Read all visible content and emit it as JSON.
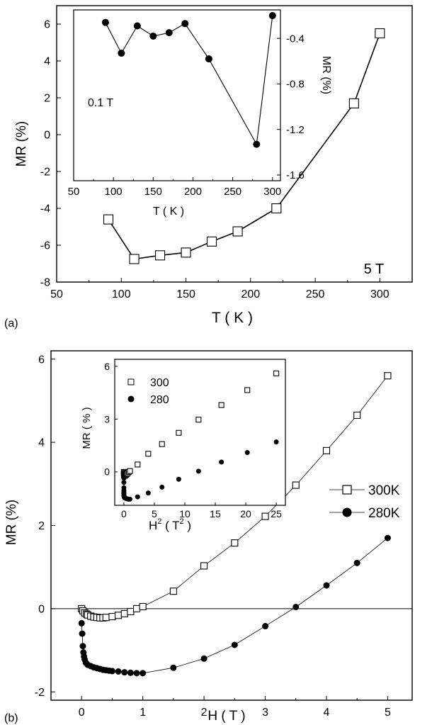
{
  "panels": [
    {
      "label": "(a)",
      "chart_data": {
        "type": "line",
        "xlabel": "T ( K )",
        "ylabel": "MR (%)",
        "xlim": [
          50,
          325
        ],
        "ylim": [
          -8,
          7
        ],
        "xticks": [
          50,
          100,
          150,
          200,
          250,
          300
        ],
        "yticks": [
          -8,
          -6,
          -4,
          -2,
          0,
          2,
          4,
          6
        ],
        "annotation": "5 T",
        "series": [
          {
            "marker": "open-square",
            "x": [
              90,
              110,
              130,
              150,
              170,
              190,
              220,
              280,
              300
            ],
            "y": [
              -4.6,
              -6.75,
              -6.55,
              -6.4,
              -5.8,
              -5.25,
              -4.0,
              1.7,
              5.5
            ]
          }
        ]
      },
      "inset": {
        "chart_data": {
          "type": "line",
          "xlabel": "T ( K )",
          "ylabel": "MR (%)",
          "xlim": [
            50,
            310
          ],
          "ylim": [
            -1.65,
            -0.15
          ],
          "xticks": [
            50,
            100,
            150,
            200,
            250,
            300
          ],
          "yticks": [
            -0.4,
            -0.8,
            -1.2,
            -1.6
          ],
          "annotation": "0.1 T",
          "series": [
            {
              "marker": "filled-circle",
              "x": [
                90,
                110,
                130,
                150,
                170,
                190,
                220,
                280,
                300
              ],
              "y": [
                -0.26,
                -0.53,
                -0.29,
                -0.38,
                -0.35,
                -0.27,
                -0.58,
                -1.33,
                -0.2
              ]
            }
          ]
        }
      }
    },
    {
      "label": "(b)",
      "chart_data": {
        "type": "line",
        "xlabel": "H ( T )",
        "ylabel": "MR (%)",
        "xlim": [
          -0.5,
          5.4
        ],
        "ylim": [
          -2.2,
          6.2
        ],
        "xticks": [
          0,
          1,
          2,
          3,
          4,
          5
        ],
        "yticks": [
          -2,
          0,
          2,
          4,
          6
        ],
        "legend": "center-right",
        "series": [
          {
            "name": "300K",
            "marker": "open-square",
            "x": [
              0,
              0.02,
              0.05,
              0.08,
              0.1,
              0.15,
              0.2,
              0.25,
              0.3,
              0.35,
              0.4,
              0.5,
              0.6,
              0.7,
              0.8,
              0.9,
              1.0,
              1.5,
              2.0,
              2.5,
              3.0,
              3.5,
              4.0,
              4.5,
              5.0
            ],
            "y": [
              0.0,
              -0.05,
              -0.1,
              -0.13,
              -0.15,
              -0.18,
              -0.2,
              -0.21,
              -0.22,
              -0.22,
              -0.21,
              -0.19,
              -0.16,
              -0.12,
              -0.07,
              0.0,
              0.05,
              0.42,
              1.03,
              1.58,
              2.22,
              2.97,
              3.8,
              4.65,
              5.6
            ]
          },
          {
            "name": "280K",
            "marker": "filled-circle",
            "x": [
              0,
              0.01,
              0.02,
              0.03,
              0.04,
              0.05,
              0.07,
              0.1,
              0.15,
              0.2,
              0.25,
              0.3,
              0.35,
              0.4,
              0.45,
              0.5,
              0.6,
              0.7,
              0.8,
              0.9,
              1.0,
              1.5,
              2.0,
              2.5,
              3.0,
              3.5,
              4.0,
              4.5,
              5.0
            ],
            "y": [
              -0.35,
              -0.6,
              -0.9,
              -1.05,
              -1.15,
              -1.22,
              -1.3,
              -1.35,
              -1.38,
              -1.41,
              -1.43,
              -1.45,
              -1.47,
              -1.48,
              -1.49,
              -1.5,
              -1.51,
              -1.53,
              -1.54,
              -1.55,
              -1.55,
              -1.42,
              -1.2,
              -0.87,
              -0.42,
              0.04,
              0.56,
              1.1,
              1.7
            ]
          }
        ]
      },
      "inset": {
        "chart_data": {
          "type": "scatter",
          "xlabel": "H",
          "xlabel_sup": "2",
          "xlabel_unit_open": " ( T",
          "xlabel_unit_sup": "2",
          "xlabel_close": " )",
          "ylabel": "MR ( % )",
          "xlim": [
            -1.5,
            26.5
          ],
          "ylim": [
            -1.9,
            6.4
          ],
          "xticks": [
            0,
            5,
            10,
            15,
            20,
            25
          ],
          "yticks": [
            0,
            3,
            6
          ],
          "legend": "top-left",
          "series": [
            {
              "name": "300",
              "marker": "open-square",
              "x": [
                0,
                0.0004,
                0.0025,
                0.0064,
                0.01,
                0.0225,
                0.04,
                0.0625,
                0.09,
                0.1225,
                0.16,
                0.25,
                0.36,
                0.49,
                0.64,
                0.81,
                1.0,
                2.25,
                4.0,
                6.25,
                9.0,
                12.25,
                16.0,
                20.25,
                25.0
              ],
              "y": [
                0.0,
                -0.05,
                -0.1,
                -0.13,
                -0.15,
                -0.18,
                -0.2,
                -0.21,
                -0.22,
                -0.22,
                -0.21,
                -0.19,
                -0.16,
                -0.12,
                -0.07,
                0.0,
                0.05,
                0.42,
                1.03,
                1.58,
                2.22,
                2.97,
                3.8,
                4.65,
                5.6
              ]
            },
            {
              "name": "280",
              "marker": "filled-circle",
              "x": [
                0,
                0.0001,
                0.0004,
                0.0009,
                0.0016,
                0.0025,
                0.0049,
                0.01,
                0.0225,
                0.04,
                0.0625,
                0.09,
                0.1225,
                0.16,
                0.2025,
                0.25,
                0.36,
                0.49,
                0.64,
                0.81,
                1.0,
                2.25,
                4.0,
                6.25,
                9.0,
                12.25,
                16.0,
                20.25,
                25.0
              ],
              "y": [
                -0.35,
                -0.6,
                -0.9,
                -1.05,
                -1.15,
                -1.22,
                -1.3,
                -1.35,
                -1.38,
                -1.41,
                -1.43,
                -1.45,
                -1.47,
                -1.48,
                -1.49,
                -1.5,
                -1.51,
                -1.53,
                -1.54,
                -1.55,
                -1.55,
                -1.42,
                -1.2,
                -0.87,
                -0.42,
                0.04,
                0.56,
                1.1,
                1.7
              ]
            }
          ]
        }
      }
    }
  ]
}
